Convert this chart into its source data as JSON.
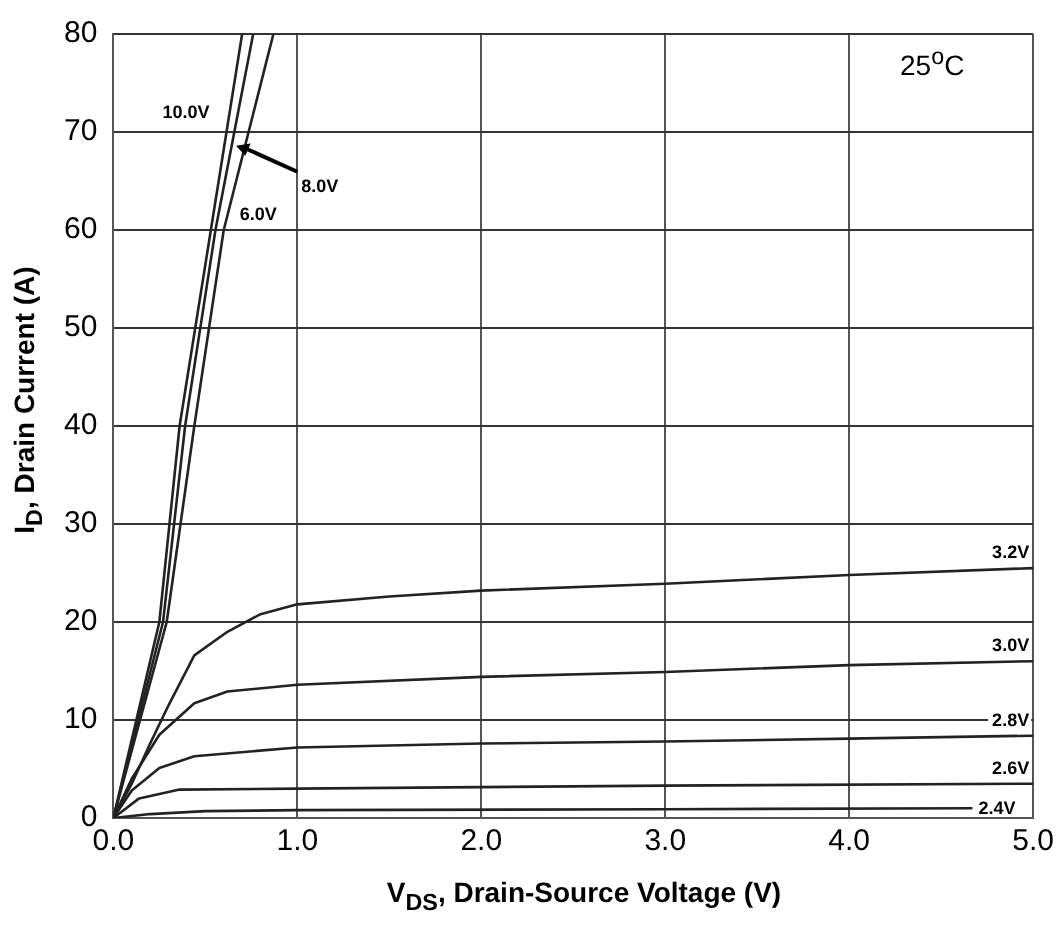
{
  "chart_data": {
    "type": "line",
    "xlabel": "V$_{DS}$, Drain-Source Voltage (V)",
    "ylabel": "I$_{D}$, Drain Current (A)",
    "xlim": [
      0,
      5
    ],
    "xticks": [
      {
        "value": 0,
        "label": "0.0"
      },
      {
        "value": 1,
        "label": "1.0"
      },
      {
        "value": 2,
        "label": "2.0"
      },
      {
        "value": 3,
        "label": "3.0"
      },
      {
        "value": 4,
        "label": "4.0"
      },
      {
        "value": 5,
        "label": "5.0"
      }
    ],
    "ylim": [
      0,
      80
    ],
    "yticks": [
      0,
      10,
      20,
      30,
      40,
      50,
      60,
      70,
      80
    ],
    "grid": true,
    "legend": false,
    "marker": "none",
    "line_style": "solid",
    "annotations": [
      "25$^{o}$C"
    ],
    "series": [
      {
        "name": "10.0V",
        "color": "#222222",
        "x": [
          0,
          0.25,
          0.36,
          0.53,
          0.7
        ],
        "values": [
          0,
          20,
          40,
          60,
          80
        ]
      },
      {
        "name": "8.0V",
        "color": "#222222",
        "x": [
          0,
          0.27,
          0.39,
          0.555,
          0.76
        ],
        "values": [
          0,
          20,
          40,
          60,
          80
        ]
      },
      {
        "name": "6.0V",
        "color": "#222222",
        "x": [
          0,
          0.29,
          0.44,
          0.6,
          0.87
        ],
        "values": [
          0,
          20,
          40,
          60,
          80
        ]
      },
      {
        "name": "3.2V",
        "color": "#222222",
        "x": [
          0,
          0.1,
          0.2,
          0.3,
          0.44,
          0.62,
          0.8,
          1.0,
          1.5,
          2.0,
          3.0,
          4.0,
          5.0
        ],
        "values": [
          0,
          3.5,
          7.6,
          11.5,
          16.6,
          19.0,
          20.8,
          21.8,
          22.6,
          23.2,
          23.9,
          24.8,
          25.5
        ]
      },
      {
        "name": "3.0V",
        "color": "#222222",
        "x": [
          0,
          0.1,
          0.25,
          0.44,
          0.62,
          1.0,
          2.0,
          3.0,
          4.0,
          5.0
        ],
        "values": [
          0,
          4,
          8.5,
          11.7,
          12.9,
          13.6,
          14.4,
          14.9,
          15.6,
          16.0
        ]
      },
      {
        "name": "2.8V",
        "color": "#222222",
        "x": [
          0,
          0.1,
          0.25,
          0.44,
          1.0,
          2.0,
          3.0,
          4.0,
          5.0
        ],
        "values": [
          0,
          2.8,
          5.1,
          6.3,
          7.2,
          7.6,
          7.8,
          8.1,
          8.4
        ]
      },
      {
        "name": "2.6V",
        "color": "#222222",
        "x": [
          0,
          0.14,
          0.36,
          1.0,
          3.0,
          5.0
        ],
        "values": [
          0,
          2.0,
          2.9,
          3.0,
          3.3,
          3.5
        ]
      },
      {
        "name": "2.4V",
        "color": "#222222",
        "x": [
          0,
          0.2,
          0.5,
          1.0,
          3.0,
          4.67
        ],
        "values": [
          0,
          0.4,
          0.7,
          0.8,
          0.9,
          1.0
        ]
      }
    ]
  }
}
